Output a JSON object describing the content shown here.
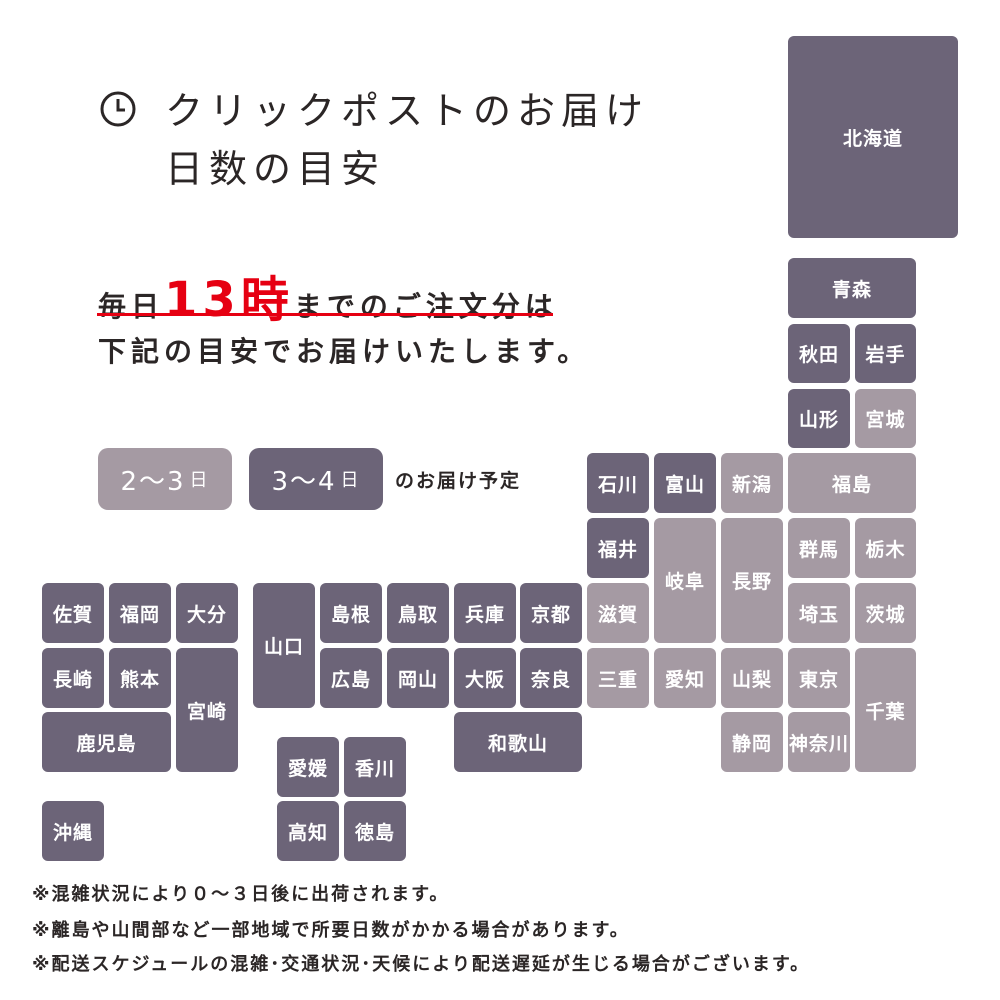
{
  "title": {
    "line1": "クリックポストのお届け",
    "line2": "日数の目安"
  },
  "lead": {
    "pre": "毎日",
    "highlight": "13時",
    "post": "までのご注文分は",
    "line2": "下記の目安でお届けいたします。"
  },
  "legend": {
    "fast": {
      "label": "2～3",
      "unit": "日"
    },
    "slow": {
      "label": "3～4",
      "unit": "日"
    },
    "caption": "のお届け予定"
  },
  "colors": {
    "fast": "#a59aa3",
    "slow": "#6c6478",
    "accent": "#e60012"
  },
  "prefectures": [
    {
      "name": "北海道",
      "delivery": "slow"
    },
    {
      "name": "青森",
      "delivery": "slow"
    },
    {
      "name": "秋田",
      "delivery": "slow"
    },
    {
      "name": "岩手",
      "delivery": "slow"
    },
    {
      "name": "山形",
      "delivery": "slow"
    },
    {
      "name": "宮城",
      "delivery": "fast"
    },
    {
      "name": "石川",
      "delivery": "slow"
    },
    {
      "name": "富山",
      "delivery": "slow"
    },
    {
      "name": "新潟",
      "delivery": "fast"
    },
    {
      "name": "福島",
      "delivery": "fast"
    },
    {
      "name": "福井",
      "delivery": "slow"
    },
    {
      "name": "岐阜",
      "delivery": "fast"
    },
    {
      "name": "長野",
      "delivery": "fast"
    },
    {
      "name": "群馬",
      "delivery": "fast"
    },
    {
      "name": "栃木",
      "delivery": "fast"
    },
    {
      "name": "滋賀",
      "delivery": "fast"
    },
    {
      "name": "埼玉",
      "delivery": "fast"
    },
    {
      "name": "茨城",
      "delivery": "fast"
    },
    {
      "name": "佐賀",
      "delivery": "slow"
    },
    {
      "name": "福岡",
      "delivery": "slow"
    },
    {
      "name": "大分",
      "delivery": "slow"
    },
    {
      "name": "山口",
      "delivery": "slow"
    },
    {
      "name": "島根",
      "delivery": "slow"
    },
    {
      "name": "鳥取",
      "delivery": "slow"
    },
    {
      "name": "兵庫",
      "delivery": "slow"
    },
    {
      "name": "京都",
      "delivery": "slow"
    },
    {
      "name": "長崎",
      "delivery": "slow"
    },
    {
      "name": "熊本",
      "delivery": "slow"
    },
    {
      "name": "宮崎",
      "delivery": "slow"
    },
    {
      "name": "広島",
      "delivery": "slow"
    },
    {
      "name": "岡山",
      "delivery": "slow"
    },
    {
      "name": "大阪",
      "delivery": "slow"
    },
    {
      "name": "奈良",
      "delivery": "slow"
    },
    {
      "name": "三重",
      "delivery": "fast"
    },
    {
      "name": "愛知",
      "delivery": "fast"
    },
    {
      "name": "山梨",
      "delivery": "fast"
    },
    {
      "name": "東京",
      "delivery": "fast"
    },
    {
      "name": "千葉",
      "delivery": "fast"
    },
    {
      "name": "鹿児島",
      "delivery": "slow"
    },
    {
      "name": "和歌山",
      "delivery": "slow"
    },
    {
      "name": "静岡",
      "delivery": "fast"
    },
    {
      "name": "神奈川",
      "delivery": "fast"
    },
    {
      "name": "愛媛",
      "delivery": "slow"
    },
    {
      "name": "香川",
      "delivery": "slow"
    },
    {
      "name": "高知",
      "delivery": "slow"
    },
    {
      "name": "徳島",
      "delivery": "slow"
    },
    {
      "name": "沖縄",
      "delivery": "slow"
    }
  ],
  "notes": [
    "※混雑状況により０～３日後に出荷されます。",
    "※離島や山間部など一部地域で所要日数がかかる場合があります。",
    "※配送スケジュールの混雑･交通状況･天候により配送遅延が生じる場合がございます。"
  ]
}
